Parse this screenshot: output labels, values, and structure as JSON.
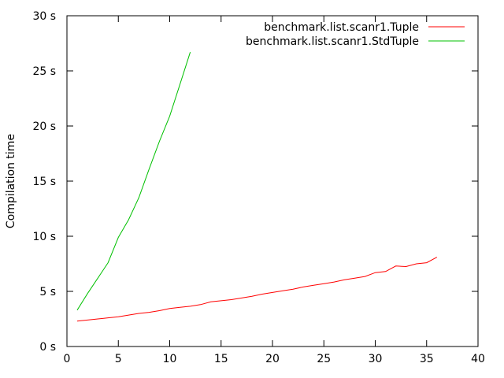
{
  "chart_data": {
    "type": "line",
    "title": "",
    "xlabel": "",
    "ylabel": "Compilation time",
    "xlim": [
      0,
      40
    ],
    "ylim": [
      0,
      30
    ],
    "xticks": [
      0,
      5,
      10,
      15,
      20,
      25,
      30,
      35,
      40
    ],
    "yticks": [
      0,
      5,
      10,
      15,
      20,
      25,
      30
    ],
    "xtick_labels": [
      "0",
      "5",
      "10",
      "15",
      "20",
      "25",
      "30",
      "35",
      "40"
    ],
    "ytick_labels": [
      "0 s",
      "5 s",
      "10 s",
      "15 s",
      "20 s",
      "25 s",
      "30 s"
    ],
    "grid": false,
    "legend": "top-right",
    "series": [
      {
        "name": "benchmark.list.scanr1.Tuple",
        "color": "#ff0000",
        "x": [
          1,
          2,
          3,
          4,
          5,
          6,
          7,
          8,
          9,
          10,
          11,
          12,
          13,
          14,
          15,
          16,
          17,
          18,
          19,
          20,
          21,
          22,
          23,
          24,
          25,
          26,
          27,
          28,
          29,
          30,
          31,
          32,
          33,
          34,
          35,
          36
        ],
        "y": [
          2.3,
          2.4,
          2.5,
          2.6,
          2.7,
          2.85,
          3.0,
          3.1,
          3.25,
          3.45,
          3.55,
          3.65,
          3.8,
          4.05,
          4.15,
          4.25,
          4.4,
          4.55,
          4.75,
          4.9,
          5.05,
          5.2,
          5.4,
          5.55,
          5.7,
          5.85,
          6.05,
          6.2,
          6.35,
          6.7,
          6.8,
          7.3,
          7.25,
          7.5,
          7.6,
          8.1
        ]
      },
      {
        "name": "benchmark.list.scanr1.StdTuple",
        "color": "#00c000",
        "x": [
          1,
          2,
          3,
          4,
          5,
          6,
          7,
          8,
          9,
          10,
          11,
          12
        ],
        "y": [
          3.3,
          4.8,
          6.2,
          7.6,
          9.9,
          11.5,
          13.5,
          16.1,
          18.6,
          20.9,
          23.8,
          26.7
        ]
      }
    ]
  }
}
